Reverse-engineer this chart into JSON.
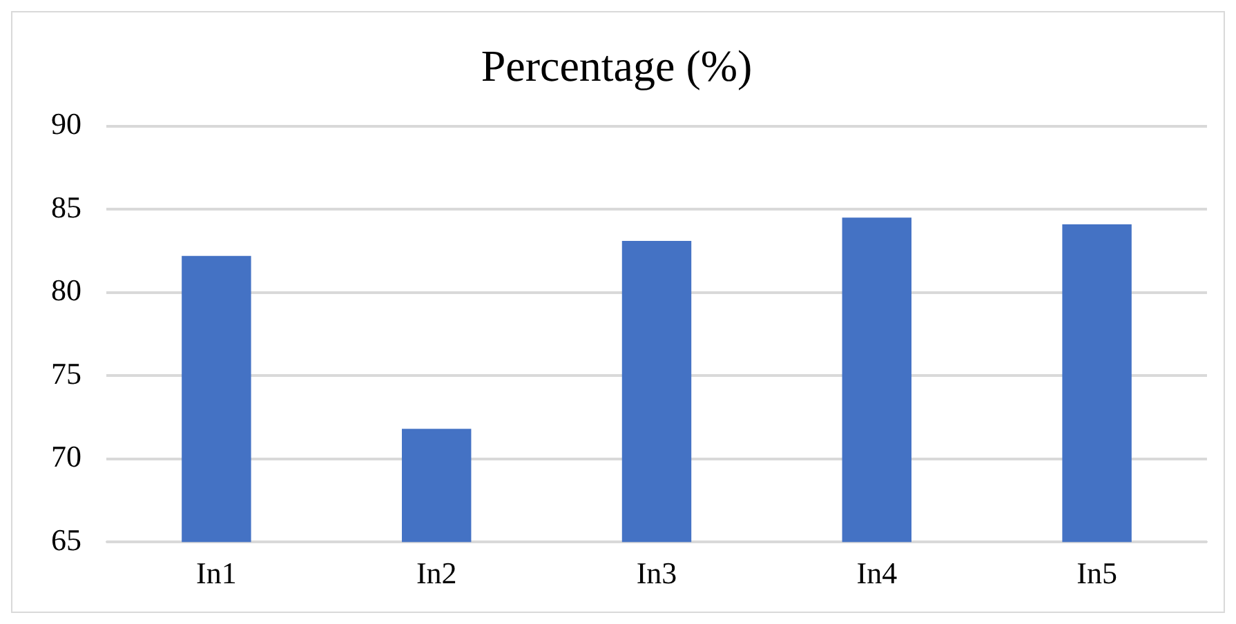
{
  "chart_data": {
    "type": "bar",
    "title": "Percentage (%)",
    "categories": [
      "In1",
      "In2",
      "In3",
      "In4",
      "In5"
    ],
    "values": [
      82.2,
      71.8,
      83.1,
      84.5,
      84.1
    ],
    "color": "#4472c4",
    "ylim": [
      65,
      90
    ],
    "yticks": [
      65,
      70,
      75,
      80,
      85,
      90
    ],
    "grid": "y",
    "legend": false
  }
}
